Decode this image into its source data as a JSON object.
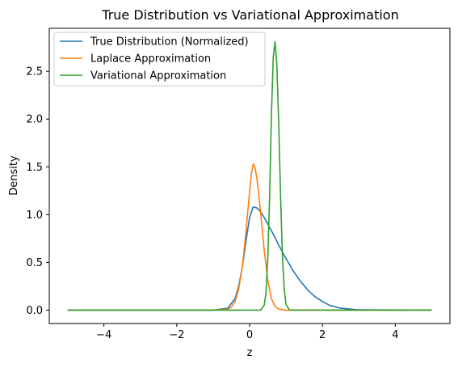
{
  "chart_data": {
    "type": "line",
    "title": "True Distribution vs Variational Approximation",
    "xlabel": "z",
    "ylabel": "Density",
    "xlim": [
      -5.5,
      5.5
    ],
    "ylim": [
      -0.14,
      2.95
    ],
    "xticks": [
      -4,
      -2,
      0,
      2,
      4
    ],
    "xtick_labels": [
      "−4",
      "−2",
      "0",
      "2",
      "4"
    ],
    "yticks": [
      0.0,
      0.5,
      1.0,
      1.5,
      2.0,
      2.5
    ],
    "ytick_labels": [
      "0.0",
      "0.5",
      "1.0",
      "1.5",
      "2.0",
      "2.5"
    ],
    "grid": false,
    "legend_position": "upper-left",
    "series": [
      {
        "name": "True Distribution (Normalized)",
        "color": "#1f77b4",
        "x": [
          -5,
          -1,
          -0.6,
          -0.4,
          -0.3,
          -0.2,
          -0.1,
          0,
          0.1,
          0.2,
          0.3,
          0.4,
          0.5,
          0.6,
          0.7,
          0.8,
          0.9,
          1.0,
          1.2,
          1.4,
          1.6,
          1.8,
          2.0,
          2.2,
          2.5,
          3.0,
          5
        ],
        "y": [
          0,
          0,
          0.02,
          0.12,
          0.25,
          0.45,
          0.72,
          0.97,
          1.08,
          1.07,
          1.03,
          0.97,
          0.9,
          0.83,
          0.76,
          0.68,
          0.61,
          0.54,
          0.41,
          0.3,
          0.21,
          0.14,
          0.09,
          0.05,
          0.02,
          0.003,
          0
        ]
      },
      {
        "name": "Laplace Approximation",
        "color": "#ff7f0e",
        "x": [
          -5,
          -1,
          -0.6,
          -0.5,
          -0.4,
          -0.3,
          -0.2,
          -0.1,
          0,
          0.05,
          0.1,
          0.15,
          0.2,
          0.3,
          0.4,
          0.5,
          0.6,
          0.7,
          0.8,
          1.0,
          1.2,
          5
        ],
        "y": [
          0,
          0,
          0.01,
          0.03,
          0.09,
          0.22,
          0.45,
          0.82,
          1.24,
          1.43,
          1.53,
          1.49,
          1.38,
          1.03,
          0.63,
          0.31,
          0.12,
          0.04,
          0.01,
          0,
          0,
          0
        ]
      },
      {
        "name": "Variational Approximation",
        "color": "#2ca02c",
        "x": [
          -5,
          0.3,
          0.4,
          0.45,
          0.5,
          0.55,
          0.6,
          0.65,
          0.7,
          0.75,
          0.8,
          0.85,
          0.9,
          0.95,
          1.0,
          1.1,
          5
        ],
        "y": [
          0,
          0,
          0.05,
          0.18,
          0.55,
          1.2,
          2.05,
          2.65,
          2.81,
          2.55,
          1.95,
          1.2,
          0.58,
          0.22,
          0.06,
          0,
          0
        ]
      }
    ]
  }
}
